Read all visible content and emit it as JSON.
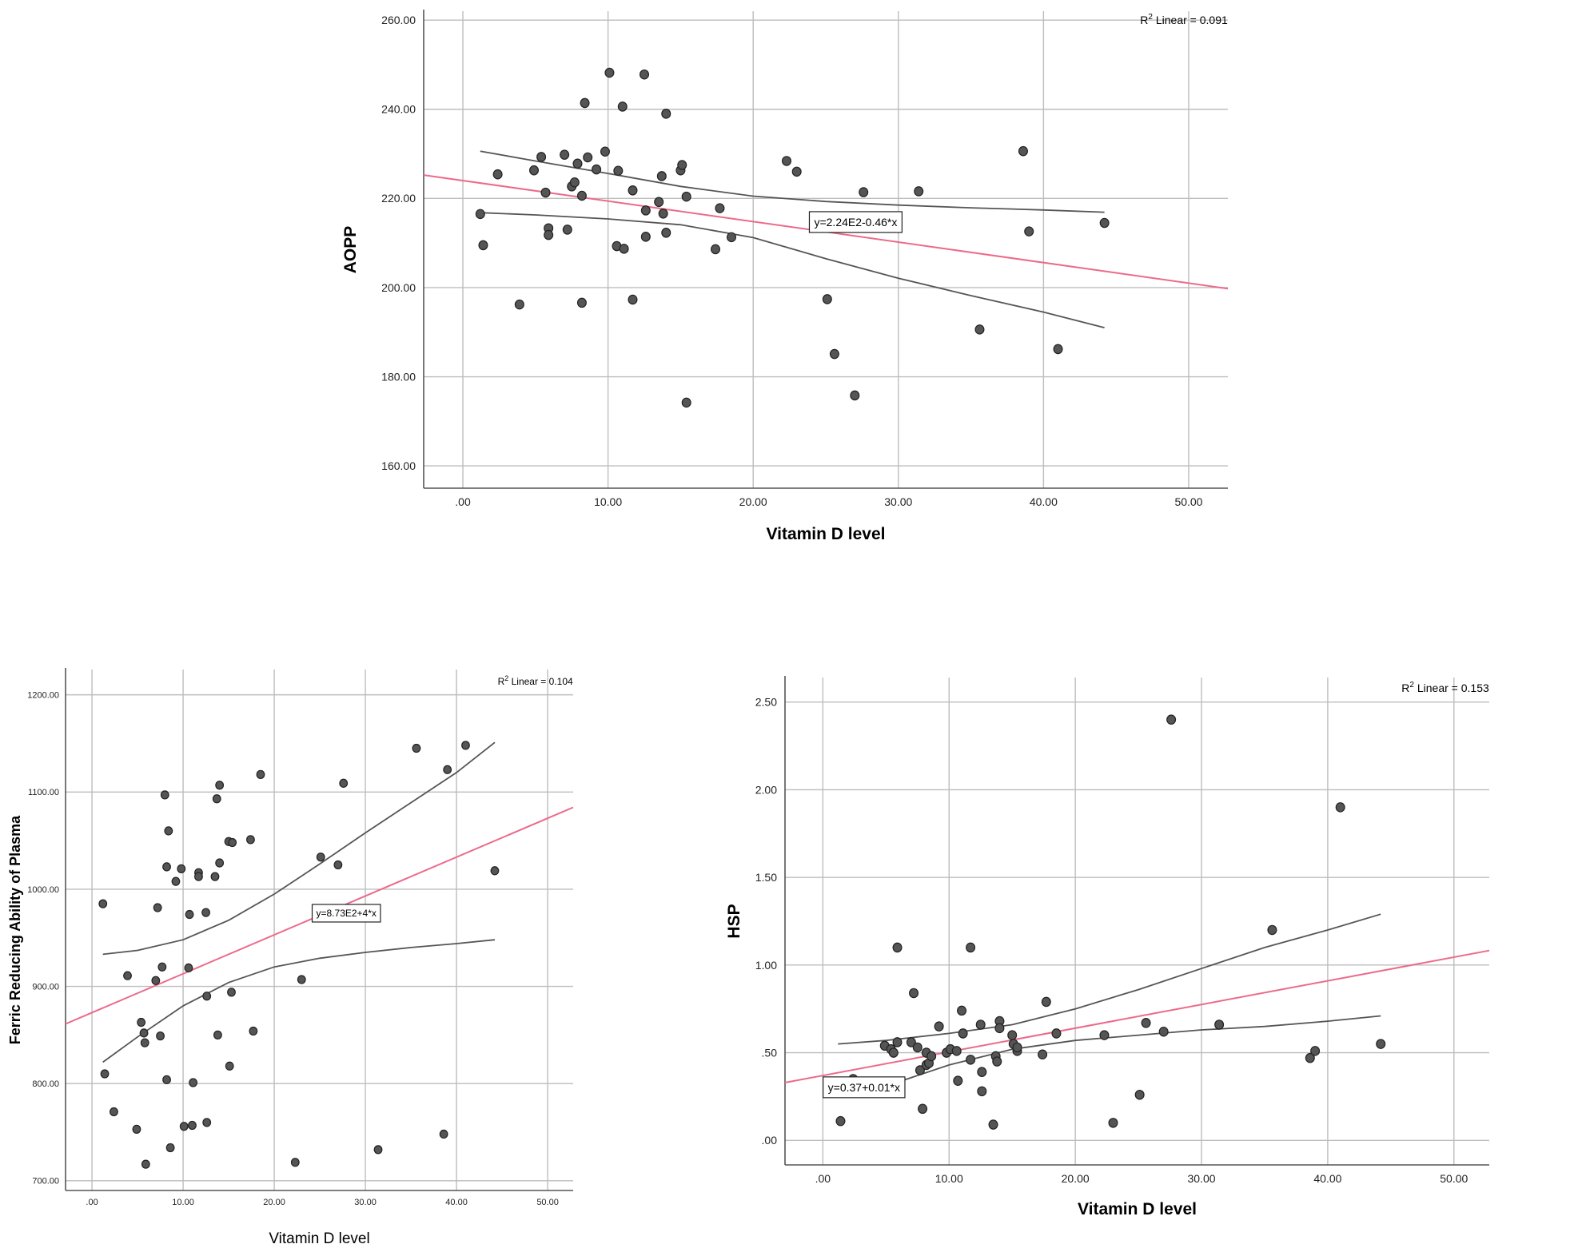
{
  "colors": {
    "background": "#ffffff",
    "grid": "#bdbdbd",
    "axis": "#555555",
    "point_fill": "#555555",
    "point_stroke": "#222222",
    "fit_line": "#ec6a8a",
    "ci_line": "#555555"
  },
  "chart_data": [
    {
      "id": "aopp",
      "type": "scatter",
      "xlabel": "Vitamin D level",
      "ylabel": "AOPP",
      "xlim": [
        -2.7,
        52.7
      ],
      "ylim": [
        155,
        262
      ],
      "xticks": [
        0,
        10,
        20,
        30,
        40,
        50
      ],
      "xtick_labels": [
        ".00",
        "10.00",
        "20.00",
        "30.00",
        "40.00",
        "50.00"
      ],
      "yticks": [
        160,
        180,
        200,
        220,
        240,
        260
      ],
      "ytick_labels": [
        "160.00",
        "180.00",
        "200.00",
        "220.00",
        "240.00",
        "260.00"
      ],
      "r2_prefix": "R",
      "r2_sup": "2",
      "r2_suffix": " Linear = 0.091",
      "equation": "y=2.24E2-0.46*x",
      "equation_at": [
        24.2,
        213.8
      ],
      "fit": {
        "intercept": 224,
        "slope": -0.46
      },
      "ci_upper": [
        [
          1.2,
          230.6
        ],
        [
          5,
          228.4
        ],
        [
          10,
          225.6
        ],
        [
          15,
          222.7
        ],
        [
          20,
          220.5
        ],
        [
          25,
          219.3
        ],
        [
          30,
          218.5
        ],
        [
          35,
          217.9
        ],
        [
          40,
          217.4
        ],
        [
          44.2,
          216.9
        ]
      ],
      "ci_lower": [
        [
          1.2,
          216.8
        ],
        [
          5,
          216.3
        ],
        [
          10,
          215.4
        ],
        [
          15,
          214.1
        ],
        [
          20,
          211.2
        ],
        [
          25,
          206.5
        ],
        [
          30,
          202.1
        ],
        [
          35,
          198.2
        ],
        [
          40,
          194.5
        ],
        [
          44.2,
          191
        ]
      ],
      "points": [
        [
          1.2,
          216.5
        ],
        [
          1.4,
          209.5
        ],
        [
          2.4,
          225.4
        ],
        [
          3.9,
          196.2
        ],
        [
          4.9,
          226.3
        ],
        [
          5.4,
          229.3
        ],
        [
          5.7,
          221.3
        ],
        [
          5.9,
          213.3
        ],
        [
          5.9,
          211.8
        ],
        [
          7.0,
          229.8
        ],
        [
          7.2,
          213
        ],
        [
          7.5,
          222.7
        ],
        [
          7.7,
          223.6
        ],
        [
          7.9,
          227.8
        ],
        [
          8.2,
          220.6
        ],
        [
          8.2,
          196.6
        ],
        [
          8.4,
          241.4
        ],
        [
          8.6,
          229.2
        ],
        [
          9.2,
          226.5
        ],
        [
          9.8,
          230.5
        ],
        [
          10.1,
          248.2
        ],
        [
          10.6,
          209.3
        ],
        [
          10.7,
          226.2
        ],
        [
          11.0,
          240.6
        ],
        [
          11.1,
          208.7
        ],
        [
          11.7,
          221.8
        ],
        [
          11.7,
          197.3
        ],
        [
          12.5,
          247.8
        ],
        [
          12.6,
          211.4
        ],
        [
          12.6,
          217.3
        ],
        [
          13.5,
          219.2
        ],
        [
          13.7,
          225
        ],
        [
          13.8,
          216.6
        ],
        [
          14.0,
          212.3
        ],
        [
          14.0,
          239
        ],
        [
          15.0,
          226.3
        ],
        [
          15.1,
          227.5
        ],
        [
          15.4,
          220.4
        ],
        [
          15.4,
          174.2
        ],
        [
          17.4,
          208.6
        ],
        [
          17.7,
          217.8
        ],
        [
          18.5,
          211.3
        ],
        [
          22.3,
          228.4
        ],
        [
          23.0,
          226
        ],
        [
          25.1,
          197.4
        ],
        [
          25.6,
          185.1
        ],
        [
          27.0,
          175.8
        ],
        [
          27.6,
          221.4
        ],
        [
          31.4,
          221.6
        ],
        [
          35.6,
          190.6
        ],
        [
          38.6,
          230.6
        ],
        [
          39.0,
          212.6
        ],
        [
          41.0,
          186.2
        ],
        [
          44.2,
          214.5
        ]
      ]
    },
    {
      "id": "frap",
      "type": "scatter",
      "xlabel": "Vitamin D level",
      "ylabel": "Ferric Reducing Ability of Plasma",
      "xlim": [
        -2.9,
        52.8
      ],
      "ylim": [
        690,
        1226
      ],
      "xticks": [
        0,
        10,
        20,
        30,
        40,
        50
      ],
      "xtick_labels": [
        ".00",
        "10.00",
        "20.00",
        "30.00",
        "40.00",
        "50.00"
      ],
      "yticks": [
        700,
        800,
        900,
        1000,
        1100,
        1200
      ],
      "ytick_labels": [
        "700.00",
        "800.00",
        "900.00",
        "1000.00",
        "1100.00",
        "1200.00"
      ],
      "r2_prefix": "R",
      "r2_sup": "2",
      "r2_suffix": " Linear = 0.104",
      "equation": "y=8.73E2+4*x",
      "equation_at": [
        24.6,
        972
      ],
      "fit": {
        "intercept": 873,
        "slope": 4
      },
      "ci_upper": [
        [
          1.2,
          933
        ],
        [
          5,
          937
        ],
        [
          10,
          948
        ],
        [
          15,
          968
        ],
        [
          20,
          995
        ],
        [
          25,
          1026
        ],
        [
          30,
          1058
        ],
        [
          35,
          1089
        ],
        [
          40,
          1120
        ],
        [
          44.2,
          1151
        ]
      ],
      "ci_lower": [
        [
          1.2,
          822
        ],
        [
          5,
          848
        ],
        [
          10,
          880
        ],
        [
          15,
          904
        ],
        [
          20,
          920
        ],
        [
          25,
          929
        ],
        [
          30,
          935
        ],
        [
          35,
          940
        ],
        [
          40,
          944
        ],
        [
          44.2,
          948
        ]
      ],
      "points": [
        [
          1.2,
          985
        ],
        [
          1.4,
          810
        ],
        [
          2.4,
          771
        ],
        [
          3.9,
          911
        ],
        [
          4.9,
          753
        ],
        [
          5.4,
          863
        ],
        [
          5.7,
          852
        ],
        [
          5.8,
          842
        ],
        [
          5.9,
          717
        ],
        [
          7.0,
          906
        ],
        [
          7.2,
          981
        ],
        [
          7.5,
          849
        ],
        [
          7.7,
          920
        ],
        [
          8.0,
          1097
        ],
        [
          8.2,
          1023
        ],
        [
          8.2,
          804
        ],
        [
          8.4,
          1060
        ],
        [
          8.6,
          734
        ],
        [
          9.2,
          1008
        ],
        [
          9.8,
          1021
        ],
        [
          10.1,
          756
        ],
        [
          10.6,
          919
        ],
        [
          10.7,
          974
        ],
        [
          11.0,
          757
        ],
        [
          11.1,
          801
        ],
        [
          11.7,
          1017
        ],
        [
          11.7,
          1013
        ],
        [
          12.5,
          976
        ],
        [
          12.6,
          890
        ],
        [
          12.6,
          760
        ],
        [
          13.5,
          1013
        ],
        [
          13.7,
          1093
        ],
        [
          13.8,
          850
        ],
        [
          14.0,
          1107
        ],
        [
          14.0,
          1027
        ],
        [
          15.0,
          1049
        ],
        [
          15.1,
          818
        ],
        [
          15.3,
          894
        ],
        [
          15.4,
          1048
        ],
        [
          17.4,
          1051
        ],
        [
          17.7,
          854
        ],
        [
          18.5,
          1118
        ],
        [
          22.3,
          719
        ],
        [
          23.0,
          907
        ],
        [
          25.1,
          1033
        ],
        [
          27.0,
          1025
        ],
        [
          27.6,
          1109
        ],
        [
          31.4,
          732
        ],
        [
          35.6,
          1145
        ],
        [
          38.6,
          748
        ],
        [
          39.0,
          1123
        ],
        [
          41.0,
          1148
        ],
        [
          44.2,
          1019
        ]
      ]
    },
    {
      "id": "hsp",
      "type": "scatter",
      "xlabel": "Vitamin D level",
      "ylabel": "HSP",
      "xlim": [
        -3,
        52.8
      ],
      "ylim": [
        -0.14,
        2.64
      ],
      "xticks": [
        0,
        10,
        20,
        30,
        40,
        50
      ],
      "xtick_labels": [
        ".00",
        "10.00",
        "20.00",
        "30.00",
        "40.00",
        "50.00"
      ],
      "yticks": [
        0,
        0.5,
        1,
        1.5,
        2,
        2.5
      ],
      "ytick_labels": [
        ".00",
        ".50",
        "1.00",
        "1.50",
        "2.00",
        "2.50"
      ],
      "r2_prefix": "R",
      "r2_sup": "2",
      "r2_suffix": " Linear = 0.153",
      "equation": "y=0.37+0.01*x",
      "equation_at": [
        0.4,
        0.28
      ],
      "fit": {
        "intercept": 0.37,
        "slope": 0.0135
      },
      "ci_upper": [
        [
          1.2,
          0.55
        ],
        [
          5,
          0.57
        ],
        [
          10,
          0.61
        ],
        [
          15,
          0.66
        ],
        [
          20,
          0.75
        ],
        [
          25,
          0.86
        ],
        [
          30,
          0.98
        ],
        [
          35,
          1.1
        ],
        [
          40,
          1.2
        ],
        [
          44.2,
          1.29
        ]
      ],
      "ci_lower": [
        [
          3,
          0.27
        ],
        [
          5,
          0.31
        ],
        [
          10,
          0.43
        ],
        [
          15,
          0.52
        ],
        [
          20,
          0.57
        ],
        [
          25,
          0.6
        ],
        [
          30,
          0.63
        ],
        [
          35,
          0.65
        ],
        [
          40,
          0.68
        ],
        [
          44.2,
          0.71
        ]
      ],
      "points": [
        [
          1.4,
          0.11
        ],
        [
          2.4,
          0.35
        ],
        [
          4.9,
          0.54
        ],
        [
          5.4,
          0.52
        ],
        [
          5.6,
          0.5
        ],
        [
          5.9,
          1.1
        ],
        [
          5.9,
          0.56
        ],
        [
          7.0,
          0.56
        ],
        [
          7.2,
          0.84
        ],
        [
          7.5,
          0.53
        ],
        [
          7.7,
          0.4
        ],
        [
          7.9,
          0.18
        ],
        [
          8.2,
          0.5
        ],
        [
          8.2,
          0.43
        ],
        [
          8.4,
          0.44
        ],
        [
          8.6,
          0.48
        ],
        [
          9.2,
          0.65
        ],
        [
          9.8,
          0.5
        ],
        [
          10.1,
          0.52
        ],
        [
          10.6,
          0.51
        ],
        [
          10.7,
          0.34
        ],
        [
          11.0,
          0.74
        ],
        [
          11.1,
          0.61
        ],
        [
          11.7,
          1.1
        ],
        [
          11.7,
          0.46
        ],
        [
          12.5,
          0.66
        ],
        [
          12.6,
          0.39
        ],
        [
          12.6,
          0.28
        ],
        [
          13.5,
          0.09
        ],
        [
          13.7,
          0.48
        ],
        [
          13.8,
          0.45
        ],
        [
          14.0,
          0.68
        ],
        [
          14.0,
          0.64
        ],
        [
          15.0,
          0.6
        ],
        [
          15.1,
          0.55
        ],
        [
          15.4,
          0.51
        ],
        [
          15.4,
          0.53
        ],
        [
          17.4,
          0.49
        ],
        [
          17.7,
          0.79
        ],
        [
          18.5,
          0.61
        ],
        [
          22.3,
          0.6
        ],
        [
          23.0,
          0.1
        ],
        [
          25.1,
          0.26
        ],
        [
          25.6,
          0.67
        ],
        [
          27.0,
          0.62
        ],
        [
          27.6,
          2.4
        ],
        [
          31.4,
          0.66
        ],
        [
          35.6,
          1.2
        ],
        [
          38.6,
          0.47
        ],
        [
          39.0,
          0.51
        ],
        [
          41.0,
          1.9
        ],
        [
          44.2,
          0.55
        ]
      ]
    }
  ]
}
